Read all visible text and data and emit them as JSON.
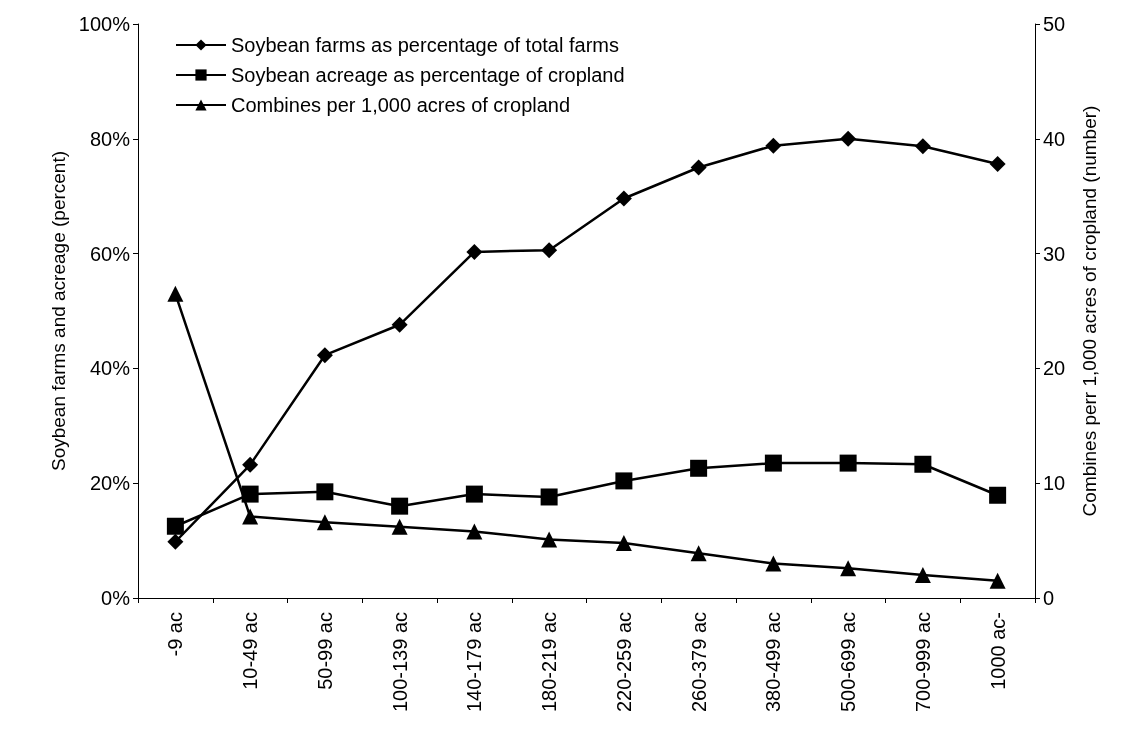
{
  "chart_data": {
    "type": "line",
    "ylabel": "Soybean farms and acreage (percent)",
    "y2label": "Combines perr 1,000 acres of cropland (number)",
    "categories": [
      "-9 ac",
      "10-49 ac",
      "50-99 ac",
      "100-139 ac",
      "140-179 ac",
      "180-219 ac",
      "220-259 ac",
      "260-379 ac",
      "380-499 ac",
      "500-699 ac",
      "700-999 ac",
      "1000 ac-"
    ],
    "series": [
      {
        "name": "Soybean farms as percentage of total farms",
        "color": "#000000",
        "marker": "diamond",
        "values": [
          9.8,
          23.2,
          42.3,
          47.6,
          60.3,
          60.6,
          69.6,
          75.0,
          78.8,
          80.0,
          78.7,
          75.6
        ]
      },
      {
        "name": "Soybean acreage as percentage of cropland",
        "color": "#000000",
        "marker": "square",
        "values": [
          12.5,
          18.1,
          18.5,
          16.0,
          18.1,
          17.6,
          20.4,
          22.6,
          23.5,
          23.5,
          23.3,
          17.9
        ]
      },
      {
        "name": "Combines per 1,000 acres of cropland",
        "color": "#000000",
        "marker": "triangle",
        "axis": "y2",
        "values": [
          26.5,
          7.1,
          6.6,
          6.2,
          5.8,
          5.1,
          4.8,
          3.9,
          3.0,
          2.6,
          2.0,
          1.5
        ]
      }
    ],
    "ylim": [
      0,
      100
    ],
    "yticks": [
      {
        "value": 0,
        "label": "0%"
      },
      {
        "value": 20,
        "label": "20%"
      },
      {
        "value": 40,
        "label": "40%"
      },
      {
        "value": 60,
        "label": "60%"
      },
      {
        "value": 80,
        "label": "80%"
      },
      {
        "value": 100,
        "label": "100%"
      }
    ],
    "y2lim": [
      0,
      50
    ],
    "y2ticks": [
      0,
      10,
      20,
      30,
      40,
      50
    ],
    "grid": false,
    "legend": "top left",
    "line_style": "solid"
  }
}
